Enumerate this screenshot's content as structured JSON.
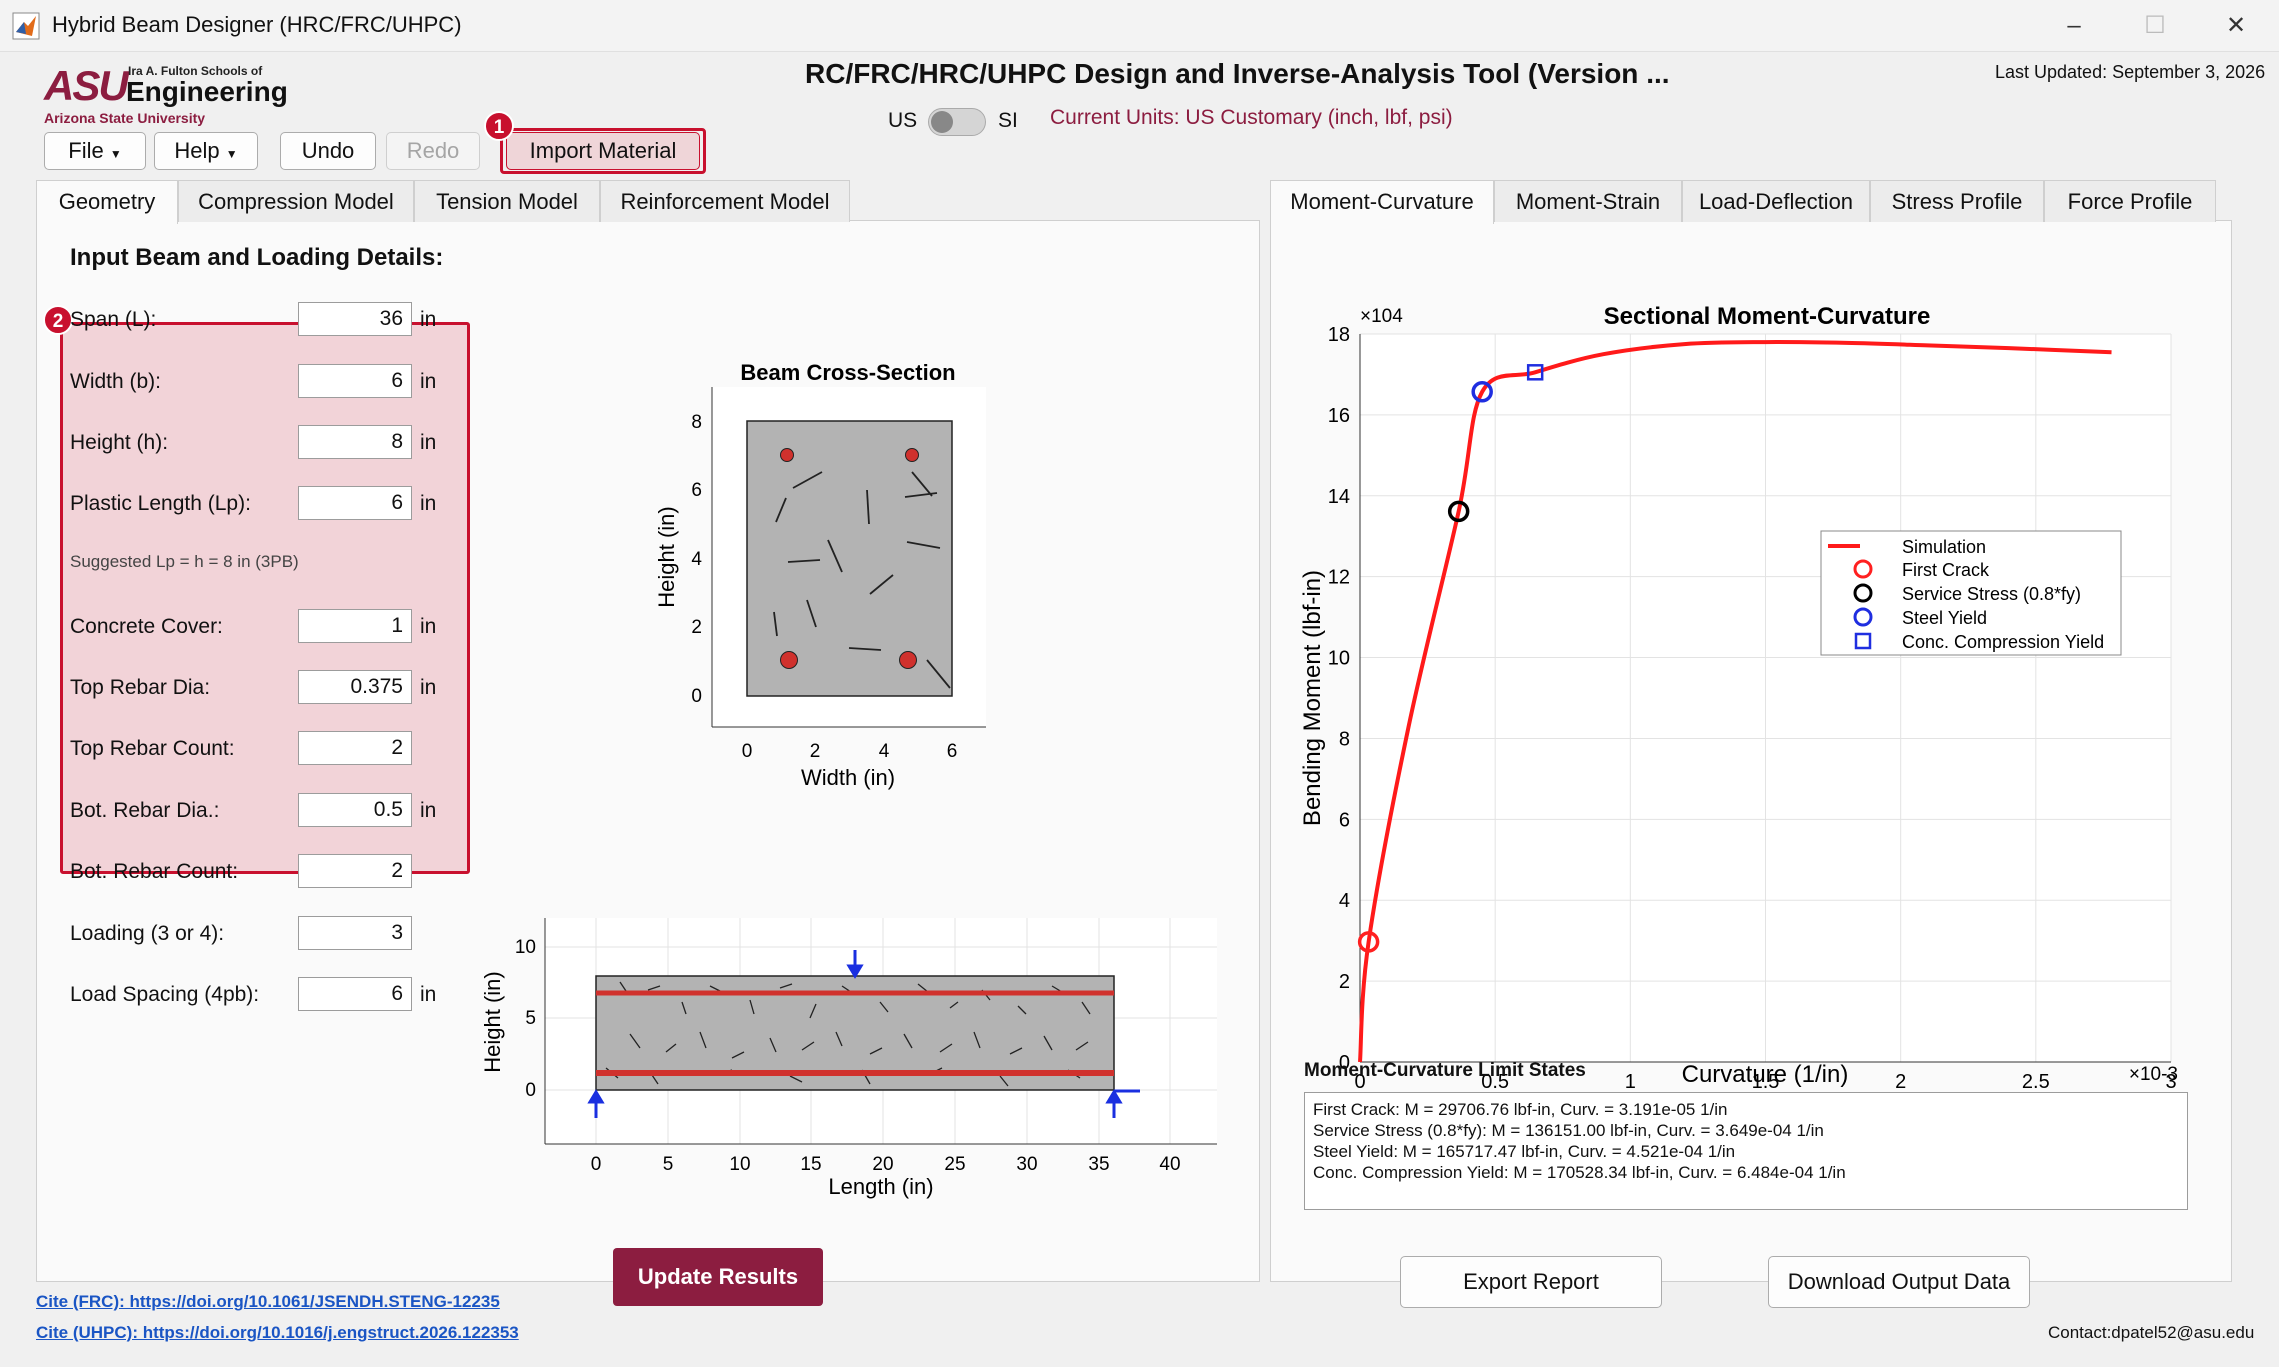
{
  "window": {
    "title": "Hybrid Beam Designer (HRC/FRC/UHPC)",
    "minimize": "–",
    "maximize": "☐",
    "close": "✕"
  },
  "header": {
    "logo_asu": "ASU",
    "logo_school": "Ira A. Fulton Schools of",
    "logo_engineering": "Engineering",
    "logo_university": "Arizona State University",
    "app_title": "RC/FRC/HRC/UHPC Design and Inverse-Analysis Tool (Version ...",
    "last_updated": "Last Updated: September 3, 2026",
    "units_us": "US",
    "units_si": "SI",
    "current_units": "Current Units: US Customary (inch, lbf, psi)"
  },
  "toolbar": {
    "file": "File",
    "help": "Help",
    "undo": "Undo",
    "redo": "Redo",
    "import": "Import Material",
    "badge1": "1",
    "badge2": "2"
  },
  "left_tabs": [
    "Geometry",
    "Compression Model",
    "Tension Model",
    "Reinforcement Model"
  ],
  "right_tabs": [
    "Moment-Curvature",
    "Moment-Strain",
    "Load-Deflection",
    "Stress Profile",
    "Force Profile"
  ],
  "geometry": {
    "heading": "Input Beam and Loading Details:",
    "suggested": "Suggested Lp = h = 8 in (3PB)",
    "fields": [
      {
        "label": "Span (L):",
        "value": "36",
        "unit": "in"
      },
      {
        "label": "Width (b):",
        "value": "6",
        "unit": "in"
      },
      {
        "label": "Height (h):",
        "value": "8",
        "unit": "in"
      },
      {
        "label": "Plastic Length (Lp):",
        "value": "6",
        "unit": "in"
      },
      {
        "label": "Concrete Cover:",
        "value": "1",
        "unit": "in"
      },
      {
        "label": "Top Rebar Dia:",
        "value": "0.375",
        "unit": "in"
      },
      {
        "label": "Top Rebar Count:",
        "value": "2",
        "unit": ""
      },
      {
        "label": "Bot. Rebar Dia.:",
        "value": "0.5",
        "unit": "in"
      },
      {
        "label": "Bot. Rebar Count:",
        "value": "2",
        "unit": ""
      },
      {
        "label": "Loading (3 or 4):",
        "value": "3",
        "unit": ""
      },
      {
        "label": "Load Spacing (4pb):",
        "value": "6",
        "unit": "in"
      }
    ]
  },
  "cross_section": {
    "title": "Beam Cross-Section",
    "xlabel": "Width (in)",
    "ylabel": "Height (in)",
    "xticks": [
      "0",
      "2",
      "4",
      "6"
    ],
    "yticks": [
      "0",
      "2",
      "4",
      "6",
      "8"
    ]
  },
  "elevation": {
    "xlabel": "Length (in)",
    "ylabel": "Height (in)",
    "xticks": [
      "0",
      "5",
      "10",
      "15",
      "20",
      "25",
      "30",
      "35",
      "40"
    ],
    "yticks": [
      "0",
      "5",
      "10"
    ]
  },
  "chart_data": {
    "type": "line",
    "title": "Sectional Moment-Curvature",
    "xlabel": "Curvature (1/in)",
    "ylabel": "Bending Moment (lbf-in)",
    "x_multiplier": "×10-3",
    "y_multiplier": "×104",
    "xlim": [
      0,
      0.003
    ],
    "ylim": [
      0,
      180000
    ],
    "xticks": [
      "0",
      "0.5",
      "1",
      "1.5",
      "2",
      "2.5",
      "3"
    ],
    "yticks": [
      "0",
      "2",
      "4",
      "6",
      "8",
      "10",
      "12",
      "14",
      "16",
      "18"
    ],
    "grid": true,
    "legend_position": "right",
    "series": [
      {
        "name": "Simulation",
        "x": [
          0,
          3.19e-05,
          0.00018,
          0.000365,
          0.000452,
          0.000648,
          0.0009,
          0.0012,
          0.0015,
          0.0018,
          0.0021,
          0.0024,
          0.00278
        ],
        "y": [
          0,
          29706,
          83000,
          136151,
          165717,
          170528,
          175000,
          177500,
          178000,
          177800,
          177200,
          176500,
          175500
        ]
      }
    ],
    "markers": [
      {
        "name": "First Crack",
        "x": 3.19e-05,
        "y": 29706,
        "shape": "circle",
        "color": "#ff2020"
      },
      {
        "name": "Service Stress (0.8*fy)",
        "x": 0.000365,
        "y": 136151,
        "shape": "circle",
        "color": "#000000"
      },
      {
        "name": "Steel Yield",
        "x": 0.000452,
        "y": 165717,
        "shape": "circle",
        "color": "#1f2ee0"
      },
      {
        "name": "Conc. Compression Yield",
        "x": 0.000648,
        "y": 170528,
        "shape": "square",
        "color": "#1f2ee0"
      }
    ]
  },
  "limits": {
    "heading": "Moment-Curvature Limit States",
    "lines": [
      "First Crack: M = 29706.76 lbf-in, Curv. = 3.191e-05 1/in",
      "Service Stress (0.8*fy): M = 136151.00 lbf-in, Curv. = 3.649e-04 1/in",
      "Steel Yield: M = 165717.47 lbf-in, Curv. = 4.521e-04 1/in",
      "Conc. Compression Yield: M = 170528.34 lbf-in, Curv. = 6.484e-04 1/in"
    ]
  },
  "footer": {
    "update": "Update Results",
    "export": "Export Report",
    "download": "Download Output Data",
    "cite_frc": "Cite (FRC): https://doi.org/10.1061/JSENDH.STENG-12235",
    "cite_uhpc": "Cite (UHPC): https://doi.org/10.1016/j.engstruct.2026.122353",
    "contact": "Contact:dpatel52@asu.edu"
  },
  "colors": {
    "accent": "#8c1d40",
    "highlight": "#c8102e",
    "units_text": "#8c1d40",
    "sim_line": "#ff1a1a"
  }
}
